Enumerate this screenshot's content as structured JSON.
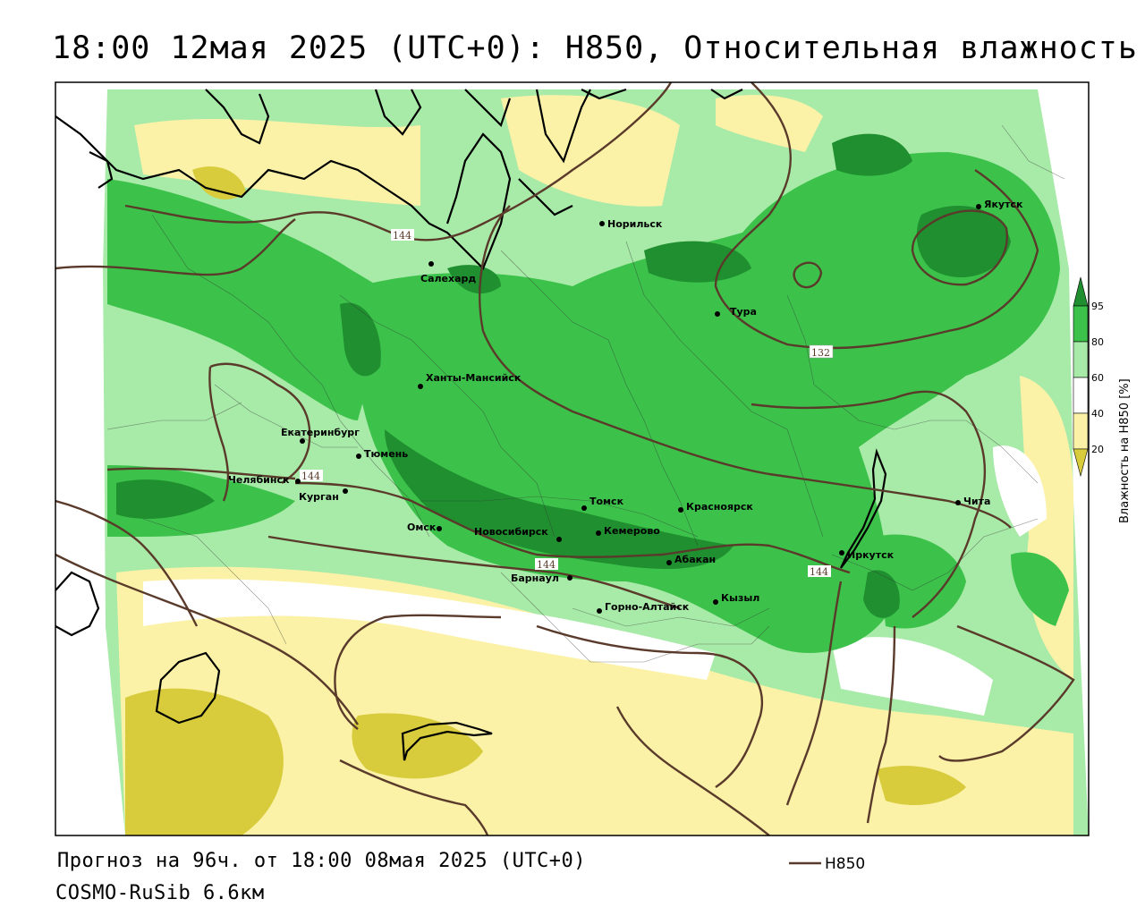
{
  "title": "18:00 12мая 2025 (UTC+0): H850, Относительная влажность",
  "footer": {
    "forecast": "Прогноз на 96ч. от 18:00 08мая 2025 (UTC+0)",
    "model": "COSMO-RuSib 6.6км"
  },
  "legend": {
    "line_label": "H850",
    "line_color": "#5a3a2a"
  },
  "colorbar": {
    "title": "Влажность на H850 [%]",
    "ticks": [
      "95",
      "80",
      "60",
      "40",
      "20"
    ],
    "colors": {
      "ge95": "#1f8f2f",
      "80_95": "#3cc24a",
      "60_80": "#a8eaa8",
      "40_60": "#ffffff",
      "20_40": "#fbf2a8",
      "lt20": "#d8cc3c"
    }
  },
  "contour_labels": [
    "144",
    "132",
    "144",
    "144",
    "144"
  ],
  "cities": [
    {
      "name": "Норильск"
    },
    {
      "name": "Якутск"
    },
    {
      "name": "Салехард"
    },
    {
      "name": "Тура"
    },
    {
      "name": "Ханты-Мансийск"
    },
    {
      "name": "Екатеринбург"
    },
    {
      "name": "Тюмень"
    },
    {
      "name": "Челябинск"
    },
    {
      "name": "Курган"
    },
    {
      "name": "Омск"
    },
    {
      "name": "Томск"
    },
    {
      "name": "Красноярск"
    },
    {
      "name": "Новосибирск"
    },
    {
      "name": "Кемерово"
    },
    {
      "name": "Абакан"
    },
    {
      "name": "Барнаул"
    },
    {
      "name": "Иркутск"
    },
    {
      "name": "Чита"
    },
    {
      "name": "Горно-Алтайск"
    },
    {
      "name": "Кызыл"
    }
  ]
}
